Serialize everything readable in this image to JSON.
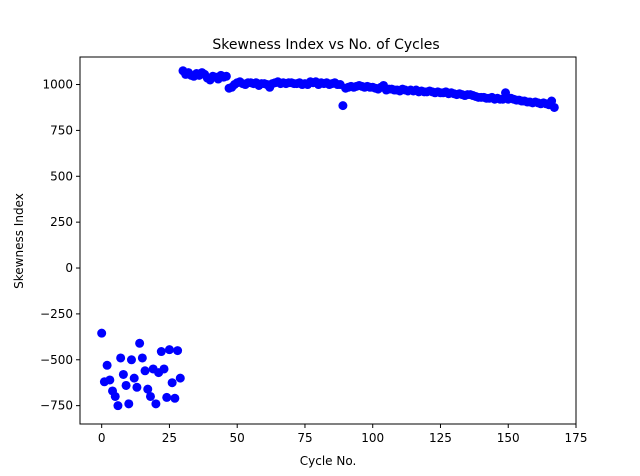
{
  "chart_data": {
    "type": "scatter",
    "title": "Skewness Index vs No. of Cycles",
    "xlabel": "Cycle No.",
    "ylabel": "Skewness Index",
    "xlim": [
      -8,
      175
    ],
    "ylim": [
      -850,
      1150
    ],
    "xticks": [
      0,
      25,
      50,
      75,
      100,
      125,
      150,
      175
    ],
    "yticks": [
      -750,
      -500,
      -250,
      0,
      250,
      500,
      750,
      1000
    ],
    "grid": false,
    "legend": "none",
    "marker_color": "#0000ff",
    "series": [
      {
        "x": [
          0,
          1,
          2,
          3,
          4,
          5,
          6,
          7,
          8,
          9,
          10,
          11,
          12,
          13,
          14,
          15,
          16,
          17,
          18,
          19,
          20,
          21,
          22,
          23,
          24,
          25,
          26,
          27,
          28,
          29,
          30,
          31,
          32,
          33,
          34,
          35,
          36,
          37,
          38,
          39,
          40,
          41,
          42,
          43,
          44,
          45,
          46,
          47,
          48,
          49,
          50,
          51,
          52,
          53,
          54,
          55,
          56,
          57,
          58,
          59,
          60,
          61,
          62,
          63,
          64,
          65,
          66,
          67,
          68,
          69,
          70,
          71,
          72,
          73,
          74,
          75,
          76,
          77,
          78,
          79,
          80,
          81,
          82,
          83,
          84,
          85,
          86,
          87,
          88,
          89,
          90,
          91,
          92,
          93,
          94,
          95,
          96,
          97,
          98,
          99,
          100,
          101,
          102,
          103,
          104,
          105,
          106,
          107,
          108,
          109,
          110,
          111,
          112,
          113,
          114,
          115,
          116,
          117,
          118,
          119,
          120,
          121,
          122,
          123,
          124,
          125,
          126,
          127,
          128,
          129,
          130,
          131,
          132,
          133,
          134,
          135,
          136,
          137,
          138,
          139,
          140,
          141,
          142,
          143,
          144,
          145,
          146,
          147,
          148,
          149,
          150,
          151,
          152,
          153,
          154,
          155,
          156,
          157,
          158,
          159,
          160,
          161,
          162,
          163,
          164,
          165,
          166,
          167
        ],
        "y": [
          -355,
          -620,
          -530,
          -610,
          -670,
          -700,
          -750,
          -490,
          -580,
          -640,
          -740,
          -500,
          -600,
          -650,
          -410,
          -490,
          -560,
          -660,
          -700,
          -550,
          -740,
          -570,
          -455,
          -550,
          -705,
          -445,
          -625,
          -710,
          -450,
          -600,
          1075,
          1055,
          1065,
          1050,
          1045,
          1060,
          1050,
          1065,
          1055,
          1035,
          1025,
          1045,
          1040,
          1030,
          1050,
          1040,
          1045,
          980,
          985,
          1000,
          1010,
          1015,
          1005,
          1000,
          1010,
          1010,
          1005,
          1010,
          995,
          1005,
          1005,
          1000,
          985,
          1005,
          1010,
          1015,
          1005,
          1010,
          1005,
          1010,
          1010,
          1005,
          1005,
          1010,
          1000,
          1005,
          1000,
          1015,
          1010,
          1015,
          1000,
          1010,
          1005,
          1010,
          1000,
          1005,
          1010,
          1000,
          1000,
          885,
          980,
          985,
          990,
          985,
          990,
          995,
          990,
          985,
          990,
          985,
          985,
          980,
          975,
          985,
          995,
          970,
          975,
          975,
          970,
          970,
          965,
          975,
          970,
          965,
          970,
          965,
          970,
          960,
          965,
          960,
          960,
          965,
          960,
          955,
          960,
          955,
          955,
          960,
          950,
          955,
          950,
          945,
          950,
          945,
          940,
          945,
          945,
          940,
          935,
          930,
          930,
          930,
          925,
          925,
          930,
          920,
          925,
          920,
          920,
          955,
          920,
          925,
          920,
          915,
          915,
          910,
          910,
          905,
          905,
          900,
          905,
          900,
          895,
          900,
          895,
          890,
          910,
          875
        ]
      }
    ]
  }
}
